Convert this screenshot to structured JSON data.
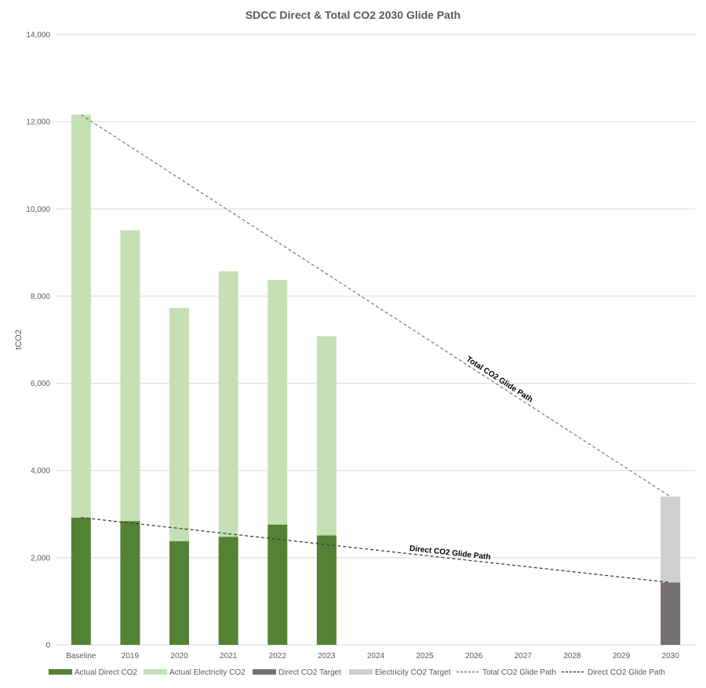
{
  "chart_data": {
    "type": "bar",
    "title": "SDCC Direct & Total CO2 2030 Glide Path",
    "xlabel": "",
    "ylabel": "tCO2",
    "ylim": [
      0,
      14000
    ],
    "yticks": [
      0,
      2000,
      4000,
      6000,
      8000,
      10000,
      12000,
      14000
    ],
    "ytick_labels": [
      "0",
      "2,000",
      "4,000",
      "6,000",
      "8,000",
      "10,000",
      "12,000",
      "14,000"
    ],
    "grid": true,
    "legend_position": "bottom",
    "categories": [
      "Baseline",
      "2019",
      "2020",
      "2021",
      "2022",
      "2023",
      "2024",
      "2025",
      "2026",
      "2027",
      "2028",
      "2029",
      "2030"
    ],
    "series": [
      {
        "name": "Actual Direct CO2",
        "kind": "bar",
        "stack": "total",
        "color": "#548235",
        "values": [
          2920,
          2840,
          2380,
          2480,
          2760,
          2510,
          null,
          null,
          null,
          null,
          null,
          null,
          null
        ]
      },
      {
        "name": "Actual Electricity CO2",
        "kind": "bar",
        "stack": "total",
        "color": "#C5E0B4",
        "values": [
          9240,
          6670,
          5350,
          6090,
          5610,
          4570,
          null,
          null,
          null,
          null,
          null,
          null,
          null
        ]
      },
      {
        "name": "Direct CO2 Target",
        "kind": "bar",
        "stack": "total",
        "color": "#767171",
        "values": [
          null,
          null,
          null,
          null,
          null,
          null,
          null,
          null,
          null,
          null,
          null,
          null,
          1430
        ]
      },
      {
        "name": "Electricity CO2 Target",
        "kind": "bar",
        "stack": "total",
        "color": "#D0CECE",
        "values": [
          null,
          null,
          null,
          null,
          null,
          null,
          null,
          null,
          null,
          null,
          null,
          null,
          1970
        ]
      },
      {
        "name": "Total CO2 Glide Path",
        "kind": "line",
        "dash": true,
        "color": "#7F7F7F",
        "points": [
          {
            "x": "Baseline",
            "y": 12160
          },
          {
            "x": "2030",
            "y": 3400
          }
        ],
        "annotation": "Total CO2 Glide Path"
      },
      {
        "name": "Direct CO2 Glide Path",
        "kind": "line",
        "dash": true,
        "color": "#404040",
        "points": [
          {
            "x": "Baseline",
            "y": 2920
          },
          {
            "x": "2030",
            "y": 1430
          }
        ],
        "annotation": "Direct CO2 Glide Path"
      }
    ]
  }
}
